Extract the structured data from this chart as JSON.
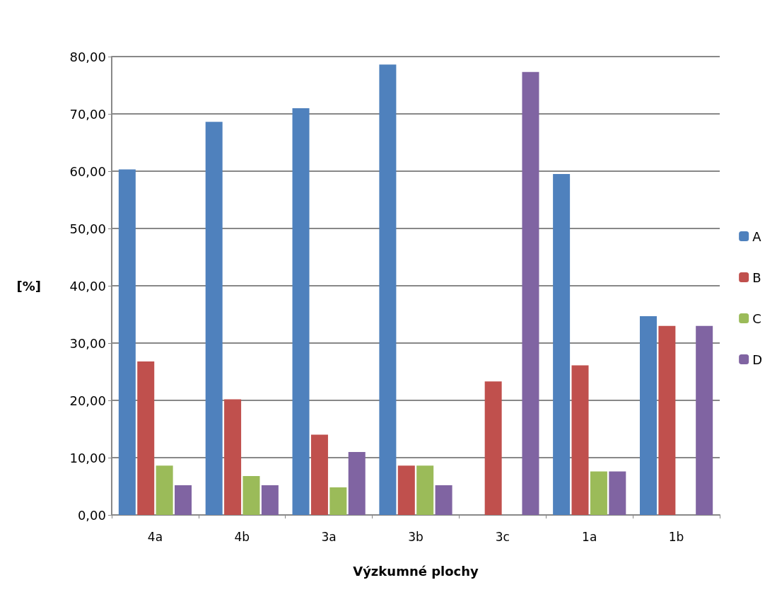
{
  "chart_data": {
    "type": "bar",
    "xlabel": "Výzkumné plochy",
    "ylabel": "[%]",
    "categories": [
      "4a",
      "4b",
      "3a",
      "3b",
      "3c",
      "1a",
      "1b"
    ],
    "series": [
      {
        "name": "A",
        "color": "#4f81bd",
        "values": [
          60.3,
          68.6,
          71.0,
          78.6,
          0,
          59.5,
          34.7
        ]
      },
      {
        "name": "B",
        "color": "#c0504d",
        "values": [
          26.8,
          20.2,
          14.0,
          8.6,
          23.3,
          26.1,
          33.0
        ]
      },
      {
        "name": "C",
        "color": "#9bbb59",
        "values": [
          8.6,
          6.8,
          4.8,
          8.6,
          0,
          7.6,
          0
        ]
      },
      {
        "name": "D",
        "color": "#8064a2",
        "values": [
          5.2,
          5.2,
          11.0,
          5.2,
          77.3,
          7.6,
          33.0
        ]
      }
    ],
    "ylim": [
      0,
      80
    ],
    "yticks": [
      {
        "value": 0,
        "label": "0,00"
      },
      {
        "value": 10,
        "label": "10,00"
      },
      {
        "value": 20,
        "label": "20,00"
      },
      {
        "value": 30,
        "label": "30,00"
      },
      {
        "value": 40,
        "label": "40,00"
      },
      {
        "value": 50,
        "label": "50,00"
      },
      {
        "value": 60,
        "label": "60,00"
      },
      {
        "value": 70,
        "label": "70,00"
      },
      {
        "value": 80,
        "label": "80,00"
      }
    ],
    "grid": "y",
    "legend": "right"
  }
}
